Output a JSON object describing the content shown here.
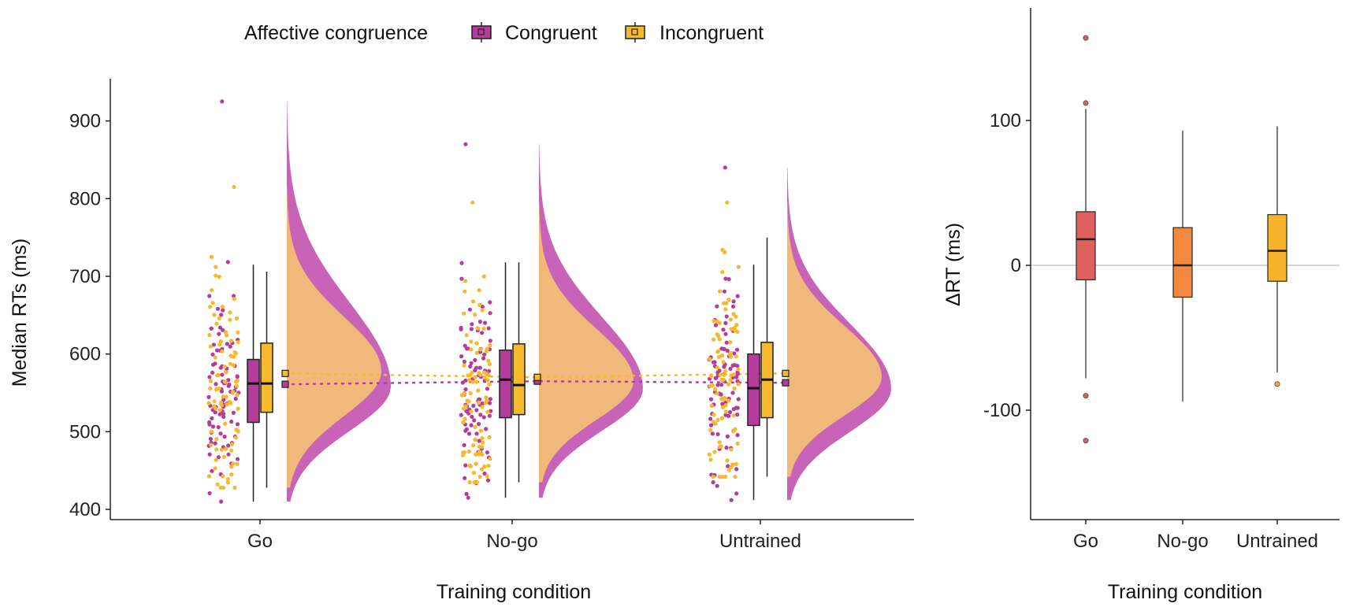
{
  "legend": {
    "title": "Affective congruence",
    "items": [
      {
        "label": "Congruent",
        "color": "#B43C9B"
      },
      {
        "label": "Incongruent",
        "color": "#F5B82E"
      }
    ]
  },
  "colors": {
    "congruent": "#B43C9B",
    "congruent_fill": "#C45CB4",
    "incongruent": "#F5B82E",
    "incongruent_fill": "#FDD06A",
    "overlap": "#EDAA5A",
    "go": "#E05F5F",
    "nogo": "#F3883E",
    "untrained": "#F7B32B"
  },
  "chart_data": [
    {
      "type": "raincloud",
      "xlabel": "Training condition",
      "ylabel": "Median RTs (ms)",
      "ylim": [
        400,
        950
      ],
      "yticks": [
        400,
        500,
        600,
        700,
        800,
        900
      ],
      "categories": [
        "Go",
        "No-go",
        "Untrained"
      ],
      "series": [
        {
          "name": "Congruent",
          "boxes": [
            {
              "category": "Go",
              "whisker_low": 410,
              "q1": 512,
              "median": 562,
              "q3": 593,
              "whisker_high": 715,
              "mean": 561
            },
            {
              "category": "No-go",
              "whisker_low": 415,
              "q1": 518,
              "median": 567,
              "q3": 605,
              "whisker_high": 718,
              "mean": 565
            },
            {
              "category": "Untrained",
              "whisker_low": 412,
              "q1": 508,
              "median": 556,
              "q3": 600,
              "whisker_high": 715,
              "mean": 563
            }
          ],
          "density_range": [
            {
              "category": "Go",
              "min": 410,
              "max": 925,
              "mode": 558
            },
            {
              "category": "No-go",
              "min": 415,
              "max": 870,
              "mode": 555
            },
            {
              "category": "Untrained",
              "min": 412,
              "max": 840,
              "mode": 555
            }
          ]
        },
        {
          "name": "Incongruent",
          "boxes": [
            {
              "category": "Go",
              "whisker_low": 428,
              "q1": 525,
              "median": 562,
              "q3": 614,
              "whisker_high": 706,
              "mean": 575
            },
            {
              "category": "No-go",
              "whisker_low": 435,
              "q1": 522,
              "median": 560,
              "q3": 613,
              "whisker_high": 718,
              "mean": 570
            },
            {
              "category": "Untrained",
              "whisker_low": 442,
              "q1": 518,
              "median": 567,
              "q3": 615,
              "whisker_high": 750,
              "mean": 575
            }
          ],
          "density_range": [
            {
              "category": "Go",
              "min": 428,
              "max": 815,
              "mode": 578
            },
            {
              "category": "No-go",
              "min": 435,
              "max": 795,
              "mode": 565
            },
            {
              "category": "Untrained",
              "min": 442,
              "max": 795,
              "mode": 570
            }
          ]
        }
      ]
    },
    {
      "type": "box",
      "xlabel": "Training condition",
      "ylabel": "ΔRT (ms)",
      "ylim": [
        -175,
        175
      ],
      "yticks": [
        -100,
        0,
        100
      ],
      "reference_line": 0,
      "categories": [
        "Go",
        "No-go",
        "Untrained"
      ],
      "boxes": [
        {
          "category": "Go",
          "whisker_low": -78,
          "q1": -10,
          "median": 18,
          "q3": 37,
          "whisker_high": 108,
          "outliers": [
            -90,
            -121,
            112,
            157
          ]
        },
        {
          "category": "No-go",
          "whisker_low": -94,
          "q1": -22,
          "median": 0,
          "q3": 26,
          "whisker_high": 93,
          "outliers": []
        },
        {
          "category": "Untrained",
          "whisker_low": -74,
          "q1": -11,
          "median": 10,
          "q3": 35,
          "whisker_high": 96,
          "outliers": [
            -82
          ]
        }
      ]
    }
  ]
}
